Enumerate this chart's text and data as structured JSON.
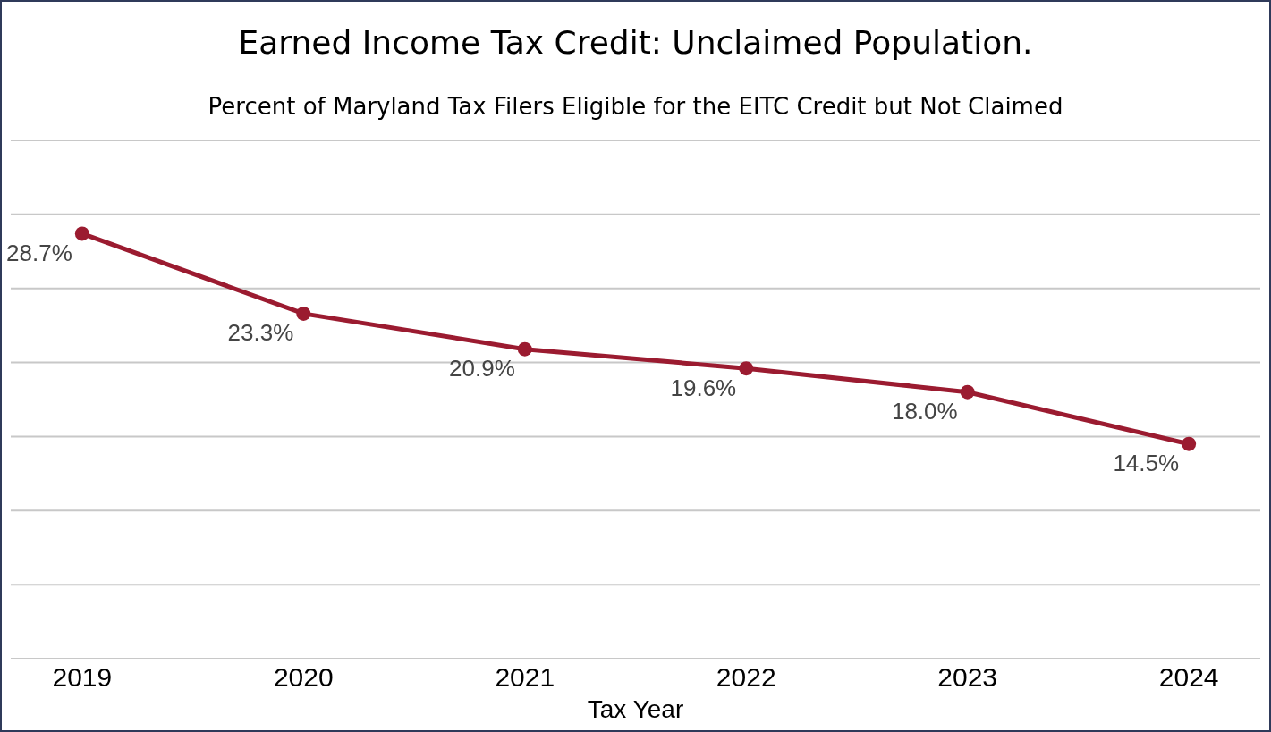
{
  "chart_data": {
    "type": "line",
    "title": "Earned Income Tax Credit: Unclaimed Population.",
    "subtitle": "Percent of Maryland Tax Filers Eligible for the EITC Credit but Not Claimed",
    "xlabel": "Tax Year",
    "categories": [
      "2019",
      "2020",
      "2021",
      "2022",
      "2023",
      "2024"
    ],
    "series": [
      {
        "color": "#9b1b30",
        "values": [
          28.7,
          23.3,
          20.9,
          19.6,
          18.0,
          14.5
        ],
        "value_labels": [
          "28.7%",
          "23.3%",
          "20.9%",
          "19.6%",
          "18.0%",
          "14.5%"
        ]
      }
    ],
    "ylim": [
      0,
      35
    ],
    "yticks": [
      {
        "value": 0,
        "label": null
      },
      {
        "value": 5,
        "label": null
      },
      {
        "value": 10,
        "label": null
      },
      {
        "value": 15,
        "label": null
      },
      {
        "value": 20,
        "label": null
      },
      {
        "value": 25,
        "label": null
      },
      {
        "value": 30,
        "label": null
      },
      {
        "value": 35,
        "label": null
      }
    ],
    "tick_labels": "x",
    "grid": "y",
    "legend": false,
    "marker": "circle",
    "line_style": "solid"
  }
}
